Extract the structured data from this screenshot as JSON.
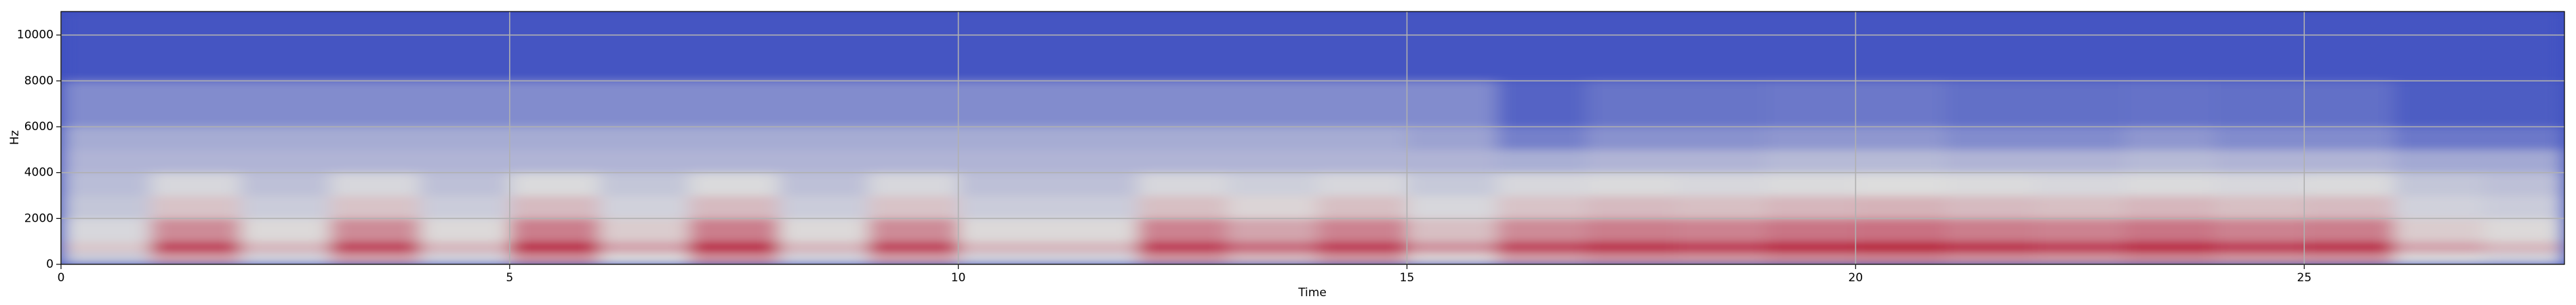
{
  "chart_data": {
    "type": "heatmap",
    "x_label": "Time",
    "y_label": "Hz",
    "xlim": [
      0,
      27.9
    ],
    "ylim": [
      0,
      11025
    ],
    "xticks": [
      0,
      5,
      10,
      15,
      20,
      25
    ],
    "yticks": [
      0,
      2000,
      4000,
      6000,
      8000,
      10000
    ],
    "grid": true,
    "colormap": [
      "#3b4cc0",
      "#dddddd",
      "#b40426"
    ],
    "x_edges": [
      0,
      1,
      2,
      3,
      4,
      5,
      6,
      7,
      8,
      9,
      10,
      11,
      12,
      13,
      14,
      15,
      16,
      17,
      18,
      19,
      20,
      21,
      22,
      23,
      24,
      25,
      26,
      27,
      27.9
    ],
    "y_edges": [
      0,
      500,
      1000,
      2000,
      3000,
      4000,
      5000,
      6000,
      8000,
      11025
    ],
    "z": [
      [
        0.43,
        0.64,
        0.46,
        0.64,
        0.46,
        0.67,
        0.49,
        0.67,
        0.46,
        0.64,
        0.46,
        0.46,
        0.66,
        0.58,
        0.66,
        0.52,
        0.64,
        0.67,
        0.66,
        0.69,
        0.7,
        0.67,
        0.66,
        0.69,
        0.66,
        0.67,
        0.49,
        0.46
      ],
      [
        0.55,
        0.86,
        0.59,
        0.86,
        0.59,
        0.91,
        0.64,
        0.91,
        0.59,
        0.86,
        0.59,
        0.59,
        0.88,
        0.77,
        0.88,
        0.68,
        0.86,
        0.91,
        0.88,
        0.93,
        0.95,
        0.91,
        0.88,
        0.93,
        0.88,
        0.91,
        0.64,
        0.59
      ],
      [
        0.48,
        0.69,
        0.51,
        0.69,
        0.51,
        0.72,
        0.54,
        0.72,
        0.51,
        0.69,
        0.51,
        0.51,
        0.71,
        0.63,
        0.71,
        0.57,
        0.69,
        0.72,
        0.71,
        0.74,
        0.75,
        0.72,
        0.71,
        0.74,
        0.71,
        0.72,
        0.54,
        0.51
      ],
      [
        0.42,
        0.56,
        0.44,
        0.56,
        0.44,
        0.58,
        0.46,
        0.58,
        0.44,
        0.56,
        0.44,
        0.44,
        0.57,
        0.52,
        0.57,
        0.48,
        0.56,
        0.58,
        0.57,
        0.59,
        0.6,
        0.58,
        0.57,
        0.59,
        0.57,
        0.58,
        0.46,
        0.44
      ],
      [
        0.39,
        0.48,
        0.4,
        0.48,
        0.4,
        0.49,
        0.42,
        0.49,
        0.4,
        0.48,
        0.4,
        0.4,
        0.48,
        0.45,
        0.48,
        0.43,
        0.48,
        0.49,
        0.48,
        0.49,
        0.5,
        0.49,
        0.48,
        0.49,
        0.48,
        0.49,
        0.42,
        0.4
      ],
      [
        0.36,
        0.36,
        0.36,
        0.36,
        0.36,
        0.36,
        0.36,
        0.36,
        0.36,
        0.36,
        0.36,
        0.36,
        0.36,
        0.36,
        0.36,
        0.36,
        0.34,
        0.36,
        0.36,
        0.38,
        0.38,
        0.36,
        0.36,
        0.38,
        0.36,
        0.36,
        0.32,
        0.32
      ],
      [
        0.33,
        0.33,
        0.33,
        0.33,
        0.33,
        0.33,
        0.33,
        0.33,
        0.33,
        0.33,
        0.33,
        0.33,
        0.33,
        0.33,
        0.33,
        0.3,
        0.18,
        0.24,
        0.24,
        0.26,
        0.26,
        0.22,
        0.22,
        0.26,
        0.22,
        0.22,
        0.15,
        0.15
      ],
      [
        0.22,
        0.22,
        0.22,
        0.22,
        0.22,
        0.22,
        0.22,
        0.22,
        0.22,
        0.22,
        0.22,
        0.22,
        0.22,
        0.22,
        0.22,
        0.22,
        0.08,
        0.14,
        0.14,
        0.15,
        0.15,
        0.12,
        0.12,
        0.13,
        0.12,
        0.12,
        0.06,
        0.06
      ],
      [
        0.03,
        0.03,
        0.03,
        0.03,
        0.03,
        0.03,
        0.03,
        0.03,
        0.03,
        0.03,
        0.03,
        0.03,
        0.03,
        0.03,
        0.03,
        0.03,
        0.03,
        0.03,
        0.03,
        0.03,
        0.03,
        0.03,
        0.03,
        0.03,
        0.03,
        0.03,
        0.03,
        0.03
      ]
    ]
  }
}
